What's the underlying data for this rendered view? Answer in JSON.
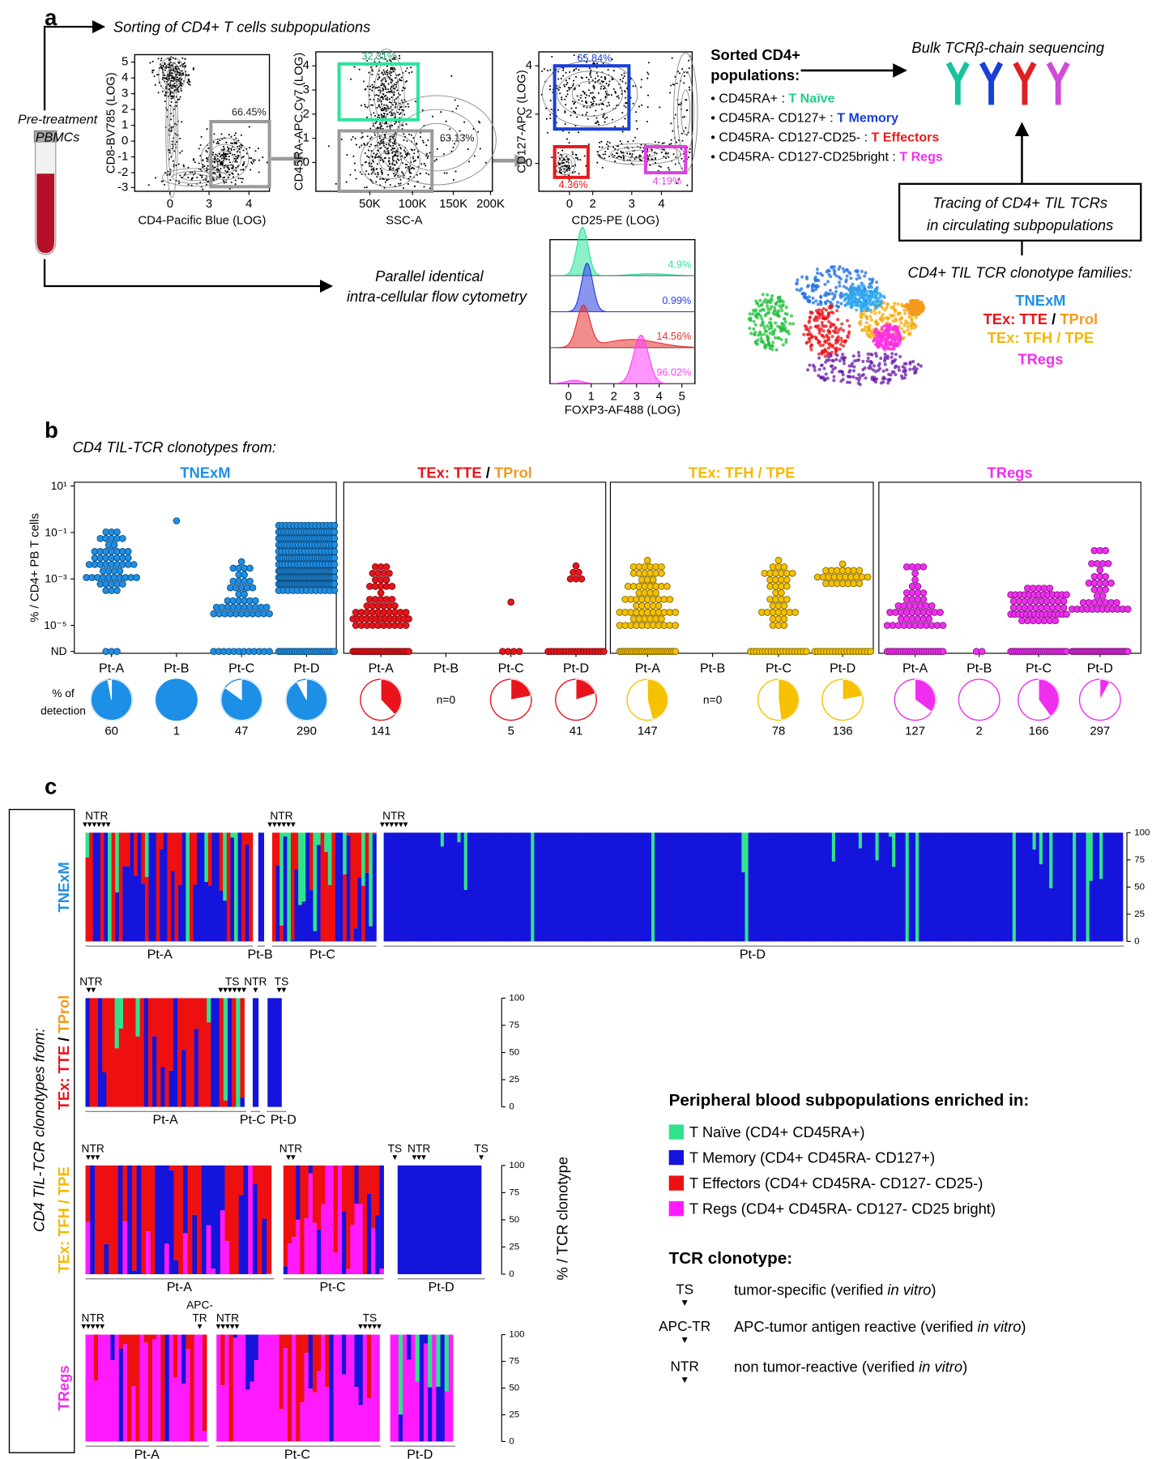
{
  "clonotype_families": [
    [
      {
        "text": "TNExM",
        "color": "#1e8fe6"
      }
    ],
    [
      {
        "text": "TEx: TTE",
        "color": "#e8141b"
      },
      {
        "text": " / ",
        "color": "#000000"
      },
      {
        "text": "TProl",
        "color": "#f39a1e"
      }
    ],
    [
      {
        "text": "TEx: TFH / TPE",
        "color": "#f5b800"
      }
    ],
    [
      {
        "text": "TRegs",
        "color": "#f02ef0"
      }
    ]
  ],
  "panel_a": {
    "label": "a",
    "sorting_title": "Sorting of CD4+ T cells subpopulations",
    "pbmc": [
      "Pre-treatment",
      "PBMCs"
    ],
    "parallel": [
      "Parallel identical",
      "intra-cellular flow cytometry"
    ],
    "plots": [
      {
        "ylabel": "CD8-BV785 (LOG)",
        "xlabel": "CD4-Pacific Blue (LOG)",
        "xticks": [
          0,
          3,
          4
        ],
        "yticks": [
          5,
          4,
          3,
          2,
          1,
          0,
          -1,
          -2,
          -3
        ],
        "gates": [
          {
            "label": "66.45%",
            "color": "#9a9a9a",
            "label_color": "#222222"
          }
        ]
      },
      {
        "ylabel": "CD45RA-APC.Cy7 (LOG)",
        "xlabel": "SSC-A",
        "xticks": [
          "50K",
          "100K",
          "150K",
          "200K"
        ],
        "yticks": [
          4,
          3,
          2,
          1,
          0
        ],
        "gates": [
          {
            "label": "32.31%",
            "color": "#2ee39a",
            "label_color": "#1a9e6a"
          },
          {
            "label": "63.13%",
            "color": "#9a9a9a",
            "label_color": "#222222"
          }
        ]
      },
      {
        "ylabel": "CD127-APC (LOG)",
        "xlabel": "CD25-PE (LOG)",
        "xticks": [
          0,
          2,
          3,
          4
        ],
        "yticks": [
          4,
          2,
          0
        ],
        "gates": [
          {
            "label": "65.84%",
            "color": "#1a3fd6",
            "label_color": "#1a3fd6"
          },
          {
            "label": "4.36%",
            "color": "#e81a1a",
            "label_color": "#e81a1a"
          },
          {
            "label": "4:19%",
            "color": "#e040e0",
            "label_color": "#e040e0"
          }
        ]
      }
    ],
    "histogram": {
      "xlabel": "FOXP3-AF488 (LOG)",
      "xticks": [
        0,
        1,
        2,
        3,
        4,
        5
      ],
      "percents": [
        "4.9%",
        "0.99%",
        "14.56%",
        "96.02%"
      ],
      "colors": [
        "#2ee39a",
        "#2a3ee0",
        "#e83030",
        "#ff40ff"
      ]
    },
    "sorted_title": [
      "Sorted CD4+",
      "populations:"
    ],
    "sorted": [
      {
        "marker": "• CD45RA+ : ",
        "name": " T Naïve",
        "color": "#1fd08a"
      },
      {
        "marker": "• CD45RA- CD127+ : ",
        "name": "T Memory",
        "color": "#1a3fd6"
      },
      {
        "marker": "• CD45RA- CD127-CD25- : ",
        "name": "T Effectors",
        "color": "#e81a1a"
      },
      {
        "marker": "• CD45RA- CD127-CD25bright : ",
        "name": "T Regs",
        "color": "#f02ef0"
      }
    ],
    "sequencing": "Bulk TCRβ-chain sequencing",
    "tracing": [
      "Tracing of CD4+ TIL TCRs",
      "in circulating subpopulations"
    ],
    "families_title": "CD4+ TIL TCR clonotype families:"
  },
  "panel_b": {
    "label": "b",
    "subtitle": "CD4 TIL-TCR clonotypes from:",
    "ylabel": "% / CD4+ PB T cells",
    "yticks": [
      "10¹",
      "10⁻¹",
      "10⁻³",
      "10⁻⁵",
      "ND"
    ],
    "detection_label": [
      "% of",
      "detection"
    ],
    "patients": [
      "Pt-A",
      "Pt-B",
      "Pt-C",
      "Pt-D"
    ],
    "groups": [
      {
        "color": "#1e8fe6",
        "counts": [
          60,
          1,
          47,
          290
        ],
        "detected": [
          97,
          100,
          85,
          92
        ]
      },
      {
        "color": "#e8141b",
        "counts": [
          141,
          "n=0",
          5,
          41
        ],
        "detected": [
          38,
          null,
          22,
          20
        ]
      },
      {
        "color": "#f5c100",
        "counts": [
          147,
          "n=0",
          78,
          136
        ],
        "detected": [
          46,
          null,
          48,
          22
        ]
      },
      {
        "color": "#f02ef0",
        "counts": [
          127,
          2,
          166,
          297
        ],
        "detected": [
          35,
          0,
          40,
          8
        ]
      }
    ]
  },
  "panel_c": {
    "label": "c",
    "side_label": "CD4 TIL-TCR clonotypes from:",
    "ylabel": "% / TCR clonotype",
    "yticks": [
      0,
      25,
      50,
      75,
      100
    ],
    "rows": [
      {
        "patients": [
          "Pt-A",
          "Pt-B",
          "Pt-C",
          "Pt-D"
        ],
        "markers": [
          [
            "NTR"
          ],
          [
            "NTR"
          ],
          [
            "NTR"
          ]
        ]
      },
      {
        "patients": [
          "Pt-A",
          "Pt-C",
          "Pt-D"
        ],
        "markers": [
          [
            "NTR"
          ],
          [
            "TS"
          ],
          [
            "NTR"
          ],
          [
            "TS"
          ]
        ]
      },
      {
        "patients": [
          "Pt-A",
          "Pt-C",
          "Pt-D"
        ],
        "markers": [
          [
            "NTR"
          ],
          [
            "NTR"
          ],
          [
            "TS"
          ],
          [
            "NTR"
          ],
          [
            "TS"
          ]
        ]
      },
      {
        "patients": [
          "Pt-A",
          "Pt-C",
          "Pt-D"
        ],
        "markers": [
          [
            "NTR"
          ],
          [
            "APC-",
            "TR"
          ],
          [
            "NTR"
          ],
          [
            "TS"
          ]
        ]
      }
    ],
    "legend_title": "Peripheral blood subpopulations enriched in:",
    "legend": [
      {
        "label": "T Naïve (CD4+ CD45RA+)",
        "color": "#2fe38c"
      },
      {
        "label": "T Memory (CD4+ CD45RA- CD127+)",
        "color": "#1414dc"
      },
      {
        "label": "T Effectors (CD4+ CD45RA- CD127- CD25-)",
        "color": "#ee1010"
      },
      {
        "label": "T Regs (CD4+ CD45RA- CD127- CD25 bright)",
        "color": "#ff1aff"
      }
    ],
    "clonotype_title": "TCR clonotype:",
    "clonotypes": [
      {
        "symbol": "TS",
        "desc": "tumor-specific (verified ",
        "italic": "in vitro",
        "end": ")"
      },
      {
        "symbol": "APC-TR",
        "desc": "APC-tumor antigen reactive (verified ",
        "italic": "in vitro",
        "end": ")"
      },
      {
        "symbol": "NTR",
        "desc": "non tumor-reactive (verified ",
        "italic": "in vitro",
        "end": ")"
      }
    ]
  }
}
